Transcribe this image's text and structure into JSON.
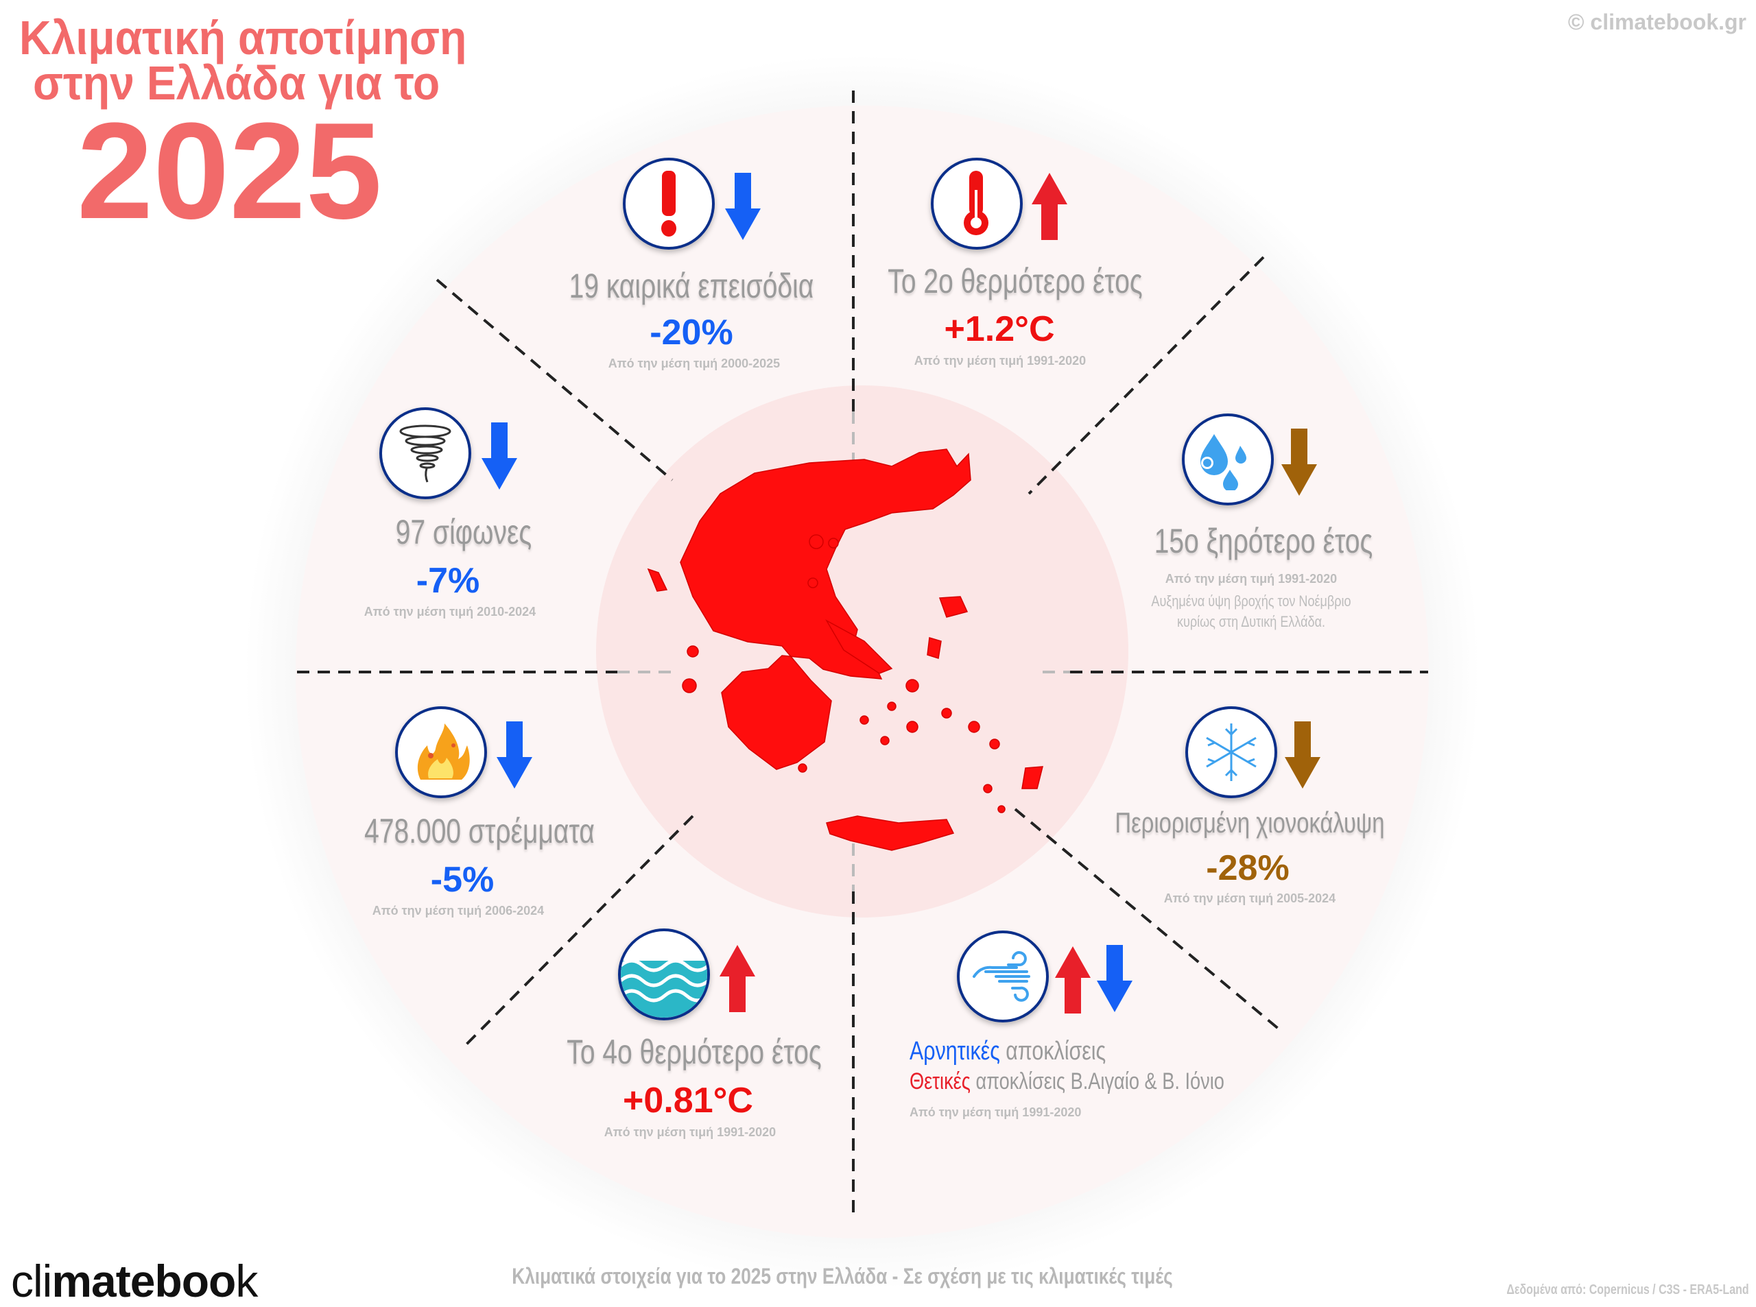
{
  "header": {
    "title_line1": "Κλιματική αποτίμηση",
    "title_line2": "στην Ελλάδα για το",
    "year": "2025",
    "copyright": "© climatebook.gr"
  },
  "colors": {
    "title": "#f26a6a",
    "up": "#e8202a",
    "down_blue": "#1560f5",
    "down_brown": "#a0620a",
    "icon_ring": "#0b2f8a"
  },
  "sections": [
    {
      "icon": "exclamation-icon",
      "trend": "down",
      "title": "19 καιρικά επεισόδια",
      "value": "-20%",
      "value_color": "#1560f5",
      "note": "Από την μέση τιμή 2000-2025"
    },
    {
      "icon": "thermometer-icon",
      "trend": "up",
      "title": "Το 2ο θερμότερο έτος",
      "value": "+1.2°C",
      "value_color": "#ee1111",
      "note": "Από την μέση τιμή 1991-2020"
    },
    {
      "icon": "rain-drops-icon",
      "trend": "down",
      "title": "15ο ξηρότερο έτος",
      "note": "Από την μέση τιμή 1991-2020",
      "desc_line1": "Αυξημένα ύψη βροχής τον Νοέμβριο",
      "desc_line2": "κυρίως στη Δυτική Ελλάδα."
    },
    {
      "icon": "snowflake-icon",
      "trend": "down",
      "title": "Περιορισμένη χιονοκάλυψη",
      "value": "-28%",
      "value_color": "#a0620a",
      "note": "Από την μέση τιμή 2005-2024"
    },
    {
      "icon": "wind-icon",
      "trend": "up-down",
      "line1_colored": "Αρνητικές",
      "line1_rest": " αποκλίσεις",
      "line2_colored": "Θετικές",
      "line2_rest": " αποκλίσεις Β.Αιγαίο & Β. Ιόνιο",
      "note": "Από την μέση τιμή 1991-2020"
    },
    {
      "icon": "sea-waves-icon",
      "trend": "up",
      "title": "Το 4ο θερμότερο έτος",
      "value": "+0.81°C",
      "value_color": "#ee1111",
      "note": "Από την μέση τιμή 1991-2020"
    },
    {
      "icon": "wildfire-icon",
      "trend": "down",
      "title": "478.000 στρέμματα",
      "value": "-5%",
      "value_color": "#1560f5",
      "note": "Από την μέση τιμή 2006-2024"
    },
    {
      "icon": "tornado-icon",
      "trend": "down",
      "title": "97 σίφωνες",
      "value": "-7%",
      "value_color": "#1560f5",
      "note": "Από την μέση τιμή 2010-2024"
    }
  ],
  "footer": {
    "logo": "climatebook",
    "caption": "Κλιματικά στοιχεία για το 2025 στην Ελλάδα - Σε σχέση με τις κλιματικές τιμές",
    "source": "Δεδομένα από: Copernicus / C3S - ERA5-Land"
  }
}
